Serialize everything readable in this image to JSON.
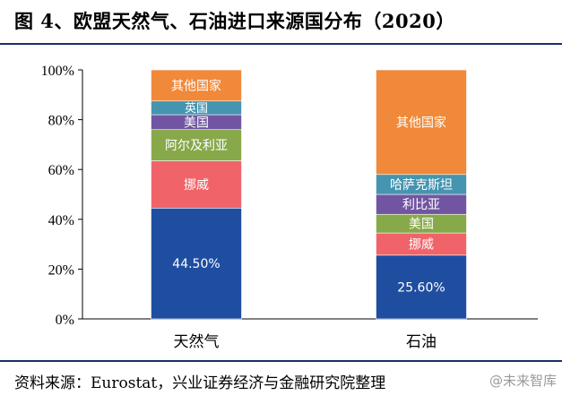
{
  "title": "图 4、欧盟天然气、石油进口来源国分布（2020）",
  "source": "资料来源：Eurostat，兴业证券经济与金融研究院整理",
  "watermark": "@未来智库",
  "chart_data": {
    "type": "bar",
    "stacked": true,
    "percent_stacked": true,
    "categories": [
      "天然气",
      "石油"
    ],
    "ylim": [
      0,
      100
    ],
    "yticks": [
      "0%",
      "20%",
      "40%",
      "60%",
      "80%",
      "100%"
    ],
    "grid": false,
    "legend": "none",
    "stacks": [
      {
        "category": "天然气",
        "segments": [
          {
            "label": "44.50%",
            "value": 44.5,
            "color": "#1f4ea1"
          },
          {
            "label": "挪威",
            "value": 19,
            "color": "#f06469"
          },
          {
            "label": "阿尔及利亚",
            "value": 12.5,
            "color": "#88a94a"
          },
          {
            "label": "美国",
            "value": 6,
            "color": "#7255a2"
          },
          {
            "label": "英国",
            "value": 5.5,
            "color": "#4595b0"
          },
          {
            "label": "其他国家",
            "value": 12.5,
            "color": "#f0893a"
          }
        ]
      },
      {
        "category": "石油",
        "segments": [
          {
            "label": "25.60%",
            "value": 25.6,
            "color": "#1f4ea1"
          },
          {
            "label": "挪威",
            "value": 8.9,
            "color": "#f06469"
          },
          {
            "label": "美国",
            "value": 7.5,
            "color": "#88a94a"
          },
          {
            "label": "利比亚",
            "value": 8,
            "color": "#7255a2"
          },
          {
            "label": "哈萨克斯坦",
            "value": 8,
            "color": "#4595b0"
          },
          {
            "label": "其他国家",
            "value": 42,
            "color": "#f0893a"
          }
        ]
      }
    ]
  }
}
